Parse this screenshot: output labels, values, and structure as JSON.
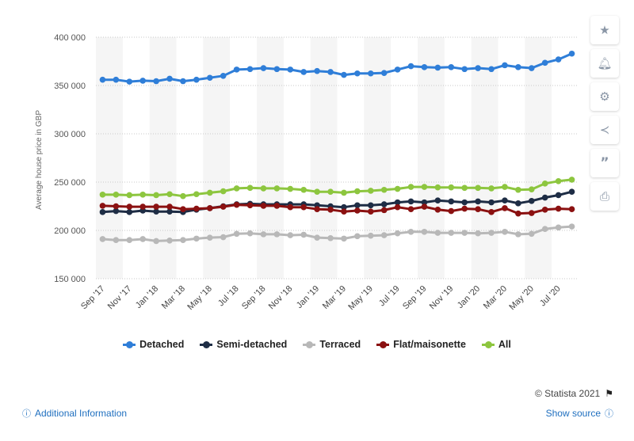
{
  "chart_data": {
    "type": "line",
    "ylabel": "Average house price in GBP",
    "xlabel": "",
    "ylim": [
      150000,
      400000
    ],
    "yticks": [
      150000,
      200000,
      250000,
      300000,
      350000,
      400000
    ],
    "ytick_labels": [
      "150 000",
      "200 000",
      "250 000",
      "300 000",
      "350 000",
      "400 000"
    ],
    "grid": true,
    "legend": "bottom",
    "x": [
      "Sep '17",
      "Oct '17",
      "Nov '17",
      "Dec '17",
      "Jan '18",
      "Feb '18",
      "Mar '18",
      "Apr '18",
      "May '18",
      "Jun '18",
      "Jul '18",
      "Aug '18",
      "Sep '18",
      "Oct '18",
      "Nov '18",
      "Dec '18",
      "Jan '19",
      "Feb '19",
      "Mar '19",
      "Apr '19",
      "May '19",
      "Jun '19",
      "Jul '19",
      "Aug '19",
      "Sep '19",
      "Oct '19",
      "Nov '19",
      "Dec '19",
      "Jan '20",
      "Feb '20",
      "Mar '20",
      "Apr '20",
      "May '20",
      "Jun '20",
      "Jul '20",
      "Aug '20"
    ],
    "xtick_labels": [
      "Sep '17",
      "Nov '17",
      "Jan '18",
      "Mar '18",
      "May '18",
      "Jul '18",
      "Sep '18",
      "Nov '18",
      "Jan '19",
      "Mar '19",
      "May '19",
      "Jul '19",
      "Sep '19",
      "Nov '19",
      "Jan '20",
      "Mar '20",
      "May '20",
      "Jul '20"
    ],
    "series": [
      {
        "name": "Detached",
        "color": "#2f7ed8",
        "values": [
          356000,
          356000,
          354000,
          355000,
          354500,
          357000,
          354500,
          356000,
          358000,
          360000,
          366500,
          367000,
          368000,
          367000,
          366500,
          364000,
          365000,
          364000,
          361000,
          362500,
          362500,
          363000,
          366500,
          370000,
          369000,
          368500,
          369000,
          367000,
          368000,
          367000,
          371000,
          369000,
          368000,
          373500,
          377000,
          383000
        ]
      },
      {
        "name": "Semi-detached",
        "color": "#1e2d45",
        "values": [
          219000,
          220000,
          219000,
          220500,
          219500,
          219500,
          219000,
          221500,
          223000,
          225000,
          227000,
          227500,
          227000,
          227000,
          227000,
          227000,
          226000,
          225000,
          224000,
          226000,
          226000,
          227000,
          229000,
          230000,
          229000,
          231000,
          230000,
          229000,
          230000,
          229000,
          231000,
          228000,
          230500,
          234000,
          236500,
          240000
        ]
      },
      {
        "name": "Terraced",
        "color": "#b8b8b8",
        "values": [
          191000,
          190000,
          190000,
          191000,
          189000,
          189500,
          190000,
          191500,
          192500,
          193000,
          196500,
          197000,
          196000,
          196000,
          195000,
          195500,
          192500,
          192000,
          191500,
          194000,
          194500,
          195000,
          197000,
          198500,
          198500,
          197500,
          197500,
          197500,
          197000,
          197500,
          198500,
          196000,
          196500,
          201500,
          203000,
          204000
        ]
      },
      {
        "name": "Flat/maisonette",
        "color": "#8b1111",
        "values": [
          225500,
          225000,
          224500,
          224500,
          224500,
          224500,
          222000,
          222500,
          223000,
          224500,
          226500,
          226000,
          225500,
          225500,
          224000,
          224000,
          222000,
          221500,
          219500,
          220500,
          219500,
          221000,
          224000,
          222000,
          224500,
          221500,
          220000,
          222500,
          222000,
          219000,
          223000,
          217500,
          218000,
          221500,
          222500,
          222000
        ]
      },
      {
        "name": "All",
        "color": "#8dc63f",
        "values": [
          237000,
          237000,
          236500,
          237000,
          236500,
          237500,
          235500,
          237500,
          239000,
          240500,
          243500,
          244000,
          243500,
          243500,
          243000,
          242000,
          240000,
          240000,
          239000,
          240500,
          241000,
          242000,
          243000,
          245000,
          245000,
          244500,
          244500,
          244000,
          244000,
          243500,
          245000,
          242000,
          242500,
          248500,
          251000,
          252500
        ]
      }
    ]
  },
  "credit": "© Statista 2021",
  "footer": {
    "additional_info": "Additional Information",
    "show_source": "Show source"
  },
  "icons": [
    "star-icon",
    "bell-icon",
    "gear-icon",
    "share-icon",
    "quote-icon",
    "print-icon",
    "flag-icon",
    "info-icon"
  ]
}
